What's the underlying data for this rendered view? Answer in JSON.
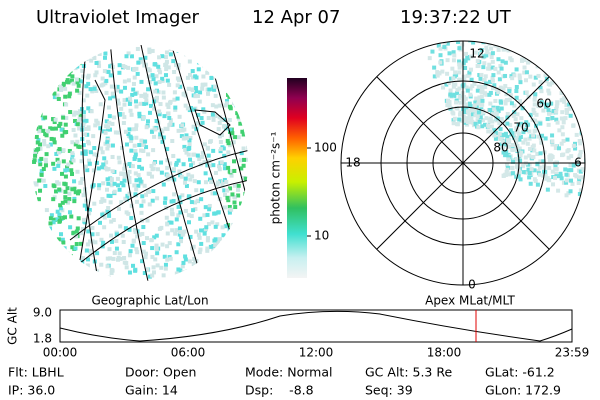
{
  "header": {
    "instrument": "Ultraviolet Imager",
    "date": "12 Apr 07",
    "time": "19:37:22 UT"
  },
  "geographic_panel": {
    "label": "Geographic Lat/Lon"
  },
  "colorbar": {
    "label": "photon cm⁻²s⁻¹",
    "ticks": [
      "100",
      "10"
    ]
  },
  "polar_panel": {
    "label": "Apex MLat/MLT",
    "mlt_labels": [
      "12",
      "6",
      "0",
      "18"
    ],
    "mlat_labels": [
      "60",
      "70",
      "80"
    ]
  },
  "altitude_plot": {
    "y_label": "GC Alt",
    "y_ticks": [
      "9.0",
      "1.8"
    ],
    "x_ticks": [
      "00:00",
      "06:00",
      "12:00",
      "18:00",
      "23:59"
    ]
  },
  "footer": {
    "rows": [
      [
        "Flt: LBHL",
        "Door: Open",
        "Mode: Normal",
        "GC Alt: 5.3 Re",
        "GLat: -61.2"
      ],
      [
        "IP: 36.0",
        "Gain: 14",
        "Dsp:    -8.8",
        "Seq: 39",
        "GLon: 172.9"
      ]
    ]
  }
}
